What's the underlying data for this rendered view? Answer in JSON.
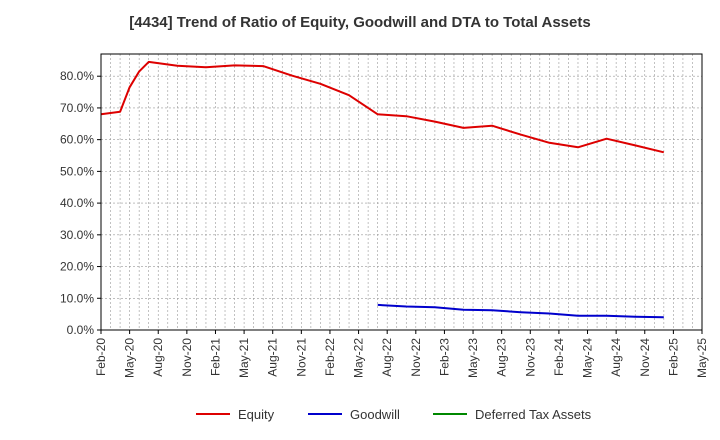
{
  "chart_data": {
    "type": "line",
    "title": "[4434]  Trend of Ratio of Equity, Goodwill and DTA to Total Assets",
    "xlabel": "",
    "ylabel": "",
    "ylim": [
      0,
      87
    ],
    "grid": true,
    "legend_position": "bottom",
    "x_ticks": [
      "Feb-20",
      "May-20",
      "Aug-20",
      "Nov-20",
      "Feb-21",
      "May-21",
      "Aug-21",
      "Nov-21",
      "Feb-22",
      "May-22",
      "Aug-22",
      "Nov-22",
      "Feb-23",
      "May-23",
      "Aug-23",
      "Nov-23",
      "Feb-24",
      "May-24",
      "Aug-24",
      "Nov-24",
      "Feb-25",
      "May-25"
    ],
    "y_ticks": [
      0,
      10,
      20,
      30,
      40,
      50,
      60,
      70,
      80
    ],
    "y_tick_labels": [
      "0.0%",
      "10.0%",
      "20.0%",
      "30.0%",
      "40.0%",
      "50.0%",
      "60.0%",
      "70.0%",
      "80.0%"
    ],
    "series": [
      {
        "name": "Equity",
        "color": "#dd0000",
        "points": [
          {
            "x": 0,
            "y": 68.0
          },
          {
            "x": 2,
            "y": 68.8
          },
          {
            "x": 3,
            "y": 76.5
          },
          {
            "x": 4,
            "y": 81.5
          },
          {
            "x": 5,
            "y": 84.5
          },
          {
            "x": 8,
            "y": 83.3
          },
          {
            "x": 11,
            "y": 82.8
          },
          {
            "x": 14,
            "y": 83.4
          },
          {
            "x": 17,
            "y": 83.2
          },
          {
            "x": 20,
            "y": 80.2
          },
          {
            "x": 23,
            "y": 77.6
          },
          {
            "x": 26,
            "y": 74.0
          },
          {
            "x": 29,
            "y": 68.0
          },
          {
            "x": 32,
            "y": 67.4
          },
          {
            "x": 35,
            "y": 65.7
          },
          {
            "x": 38,
            "y": 63.7
          },
          {
            "x": 41,
            "y": 64.4
          },
          {
            "x": 44,
            "y": 61.6
          },
          {
            "x": 47,
            "y": 59.0
          },
          {
            "x": 50,
            "y": 57.6
          },
          {
            "x": 53,
            "y": 60.3
          },
          {
            "x": 56,
            "y": 58.2
          },
          {
            "x": 59,
            "y": 56.0
          }
        ]
      },
      {
        "name": "Goodwill",
        "color": "#0000cc",
        "points": [
          {
            "x": 29,
            "y": 7.9
          },
          {
            "x": 32,
            "y": 7.4
          },
          {
            "x": 35,
            "y": 7.2
          },
          {
            "x": 38,
            "y": 6.4
          },
          {
            "x": 41,
            "y": 6.2
          },
          {
            "x": 44,
            "y": 5.6
          },
          {
            "x": 47,
            "y": 5.2
          },
          {
            "x": 50,
            "y": 4.5
          },
          {
            "x": 53,
            "y": 4.5
          },
          {
            "x": 56,
            "y": 4.2
          },
          {
            "x": 59,
            "y": 4.0
          }
        ]
      },
      {
        "name": "Deferred Tax Assets",
        "color": "#008800",
        "points": []
      }
    ]
  }
}
